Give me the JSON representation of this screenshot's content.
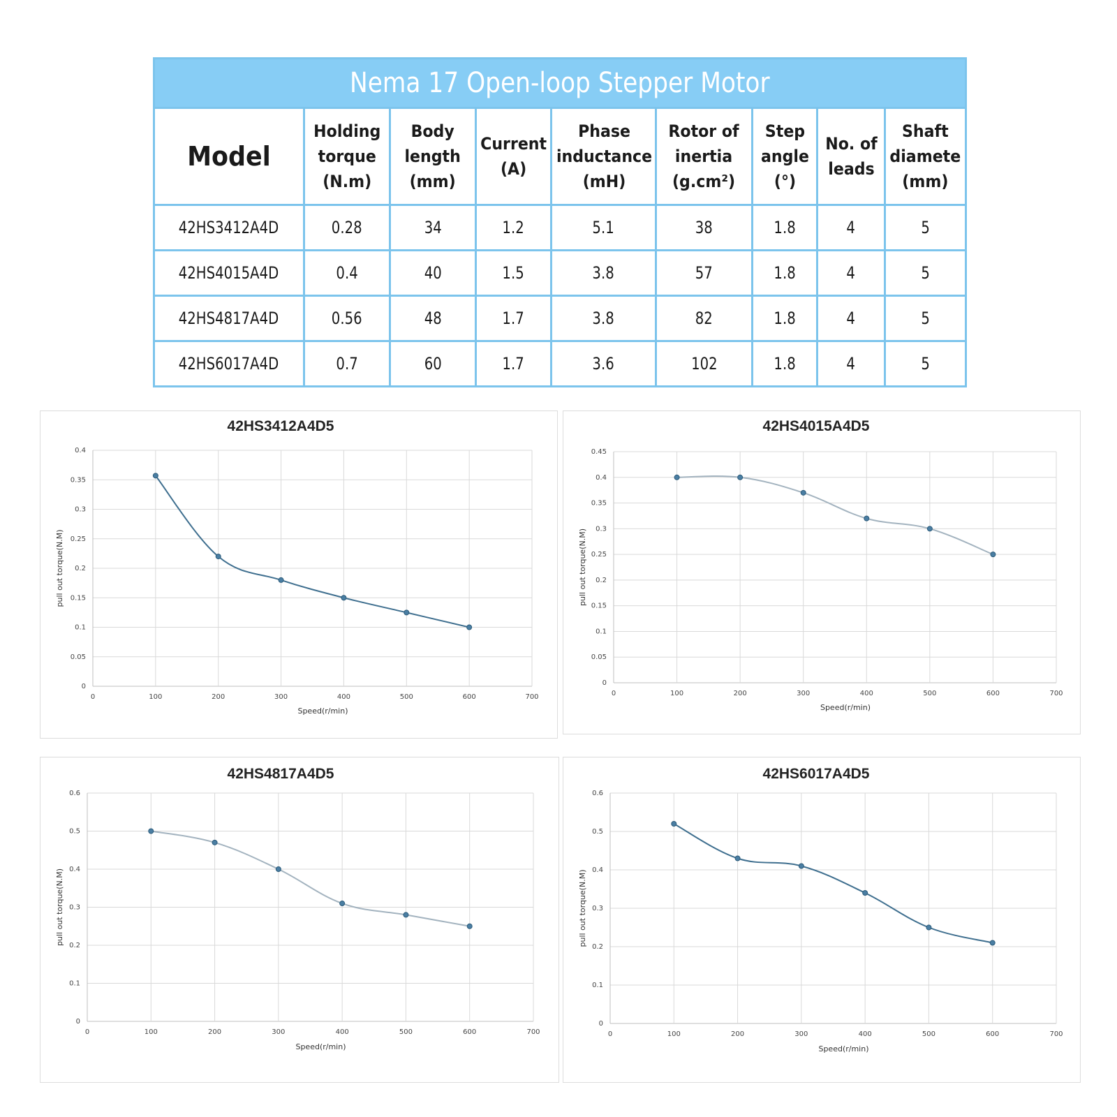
{
  "table": {
    "title": "Nema 17 Open-loop Stepper Motor",
    "headers": [
      [
        "Model"
      ],
      [
        "Holding",
        "torque",
        "(N.m)"
      ],
      [
        "Body",
        "length",
        "(mm)"
      ],
      [
        "Current",
        "(A)"
      ],
      [
        "Phase",
        "inductance",
        "(mH)"
      ],
      [
        "Rotor of",
        "inertia",
        "(g.cm²)"
      ],
      [
        "Step",
        "angle",
        "(°)"
      ],
      [
        "No. of",
        "leads"
      ],
      [
        "Shaft",
        "diamete",
        "(mm)"
      ]
    ],
    "rows": [
      [
        "42HS3412A4D",
        "0.28",
        "34",
        "1.2",
        "5.1",
        "38",
        "1.8",
        "4",
        "5"
      ],
      [
        "42HS4015A4D",
        "0.4",
        "40",
        "1.5",
        "3.8",
        "57",
        "1.8",
        "4",
        "5"
      ],
      [
        "42HS4817A4D",
        "0.56",
        "48",
        "1.7",
        "3.8",
        "82",
        "1.8",
        "4",
        "5"
      ],
      [
        "42HS6017A4D",
        "0.7",
        "60",
        "1.7",
        "3.6",
        "102",
        "1.8",
        "4",
        "5"
      ]
    ]
  },
  "chart_data": [
    {
      "type": "line",
      "title": "42HS3412A4D5",
      "xlabel": "Speed(r/min)",
      "ylabel": "pull out torque(N.M)",
      "xlim": [
        0,
        700
      ],
      "ylim": [
        0,
        0.4
      ],
      "x_ticks": [
        "0",
        "100",
        "200",
        "300",
        "400",
        "500",
        "600",
        "700"
      ],
      "y_ticks": [
        "0",
        "0.05",
        "0.1",
        "0.15",
        "0.2",
        "0.25",
        "0.3",
        "0.35",
        "0.4"
      ],
      "x": [
        100,
        200,
        300,
        400,
        500,
        600
      ],
      "y": [
        0.357,
        0.22,
        0.18,
        0.15,
        0.125,
        0.1
      ],
      "grid": true,
      "line_color": "#3f6f8f"
    },
    {
      "type": "line",
      "title": "42HS4015A4D5",
      "xlabel": "Speed(r/min)",
      "ylabel": "pull out torque(N.M)",
      "xlim": [
        0,
        700
      ],
      "ylim": [
        0,
        0.45
      ],
      "x_ticks": [
        "0",
        "100",
        "200",
        "300",
        "400",
        "500",
        "600",
        "700"
      ],
      "y_ticks": [
        "0",
        "0.05",
        "0.1",
        "0.15",
        "0.2",
        "0.25",
        "0.3",
        "0.35",
        "0.4",
        "0.45"
      ],
      "x": [
        100,
        200,
        300,
        400,
        500,
        600
      ],
      "y": [
        0.4,
        0.4,
        0.37,
        0.32,
        0.3,
        0.25
      ],
      "grid": true,
      "line_color": "#a3b3bf"
    },
    {
      "type": "line",
      "title": "42HS4817A4D5",
      "xlabel": "Speed(r/min)",
      "ylabel": "pull out torque(N.M)",
      "xlim": [
        0,
        700
      ],
      "ylim": [
        0,
        0.6
      ],
      "x_ticks": [
        "0",
        "100",
        "200",
        "300",
        "400",
        "500",
        "600",
        "700"
      ],
      "y_ticks": [
        "0",
        "0.1",
        "0.2",
        "0.3",
        "0.4",
        "0.5",
        "0.6"
      ],
      "x": [
        100,
        200,
        300,
        400,
        500,
        600
      ],
      "y": [
        0.5,
        0.47,
        0.4,
        0.31,
        0.28,
        0.25
      ],
      "grid": true,
      "line_color": "#a3b3bf"
    },
    {
      "type": "line",
      "title": "42HS6017A4D5",
      "xlabel": "Speed(r/min)",
      "ylabel": "pull out torque(N.M)",
      "xlim": [
        0,
        700
      ],
      "ylim": [
        0,
        0.6
      ],
      "x_ticks": [
        "0",
        "100",
        "200",
        "300",
        "400",
        "500",
        "600",
        "700"
      ],
      "y_ticks": [
        "0",
        "0.1",
        "0.2",
        "0.3",
        "0.4",
        "0.5",
        "0.6"
      ],
      "x": [
        100,
        200,
        300,
        400,
        500,
        600
      ],
      "y": [
        0.52,
        0.43,
        0.41,
        0.34,
        0.25,
        0.21
      ],
      "grid": true,
      "line_color": "#3f6f8f"
    }
  ]
}
